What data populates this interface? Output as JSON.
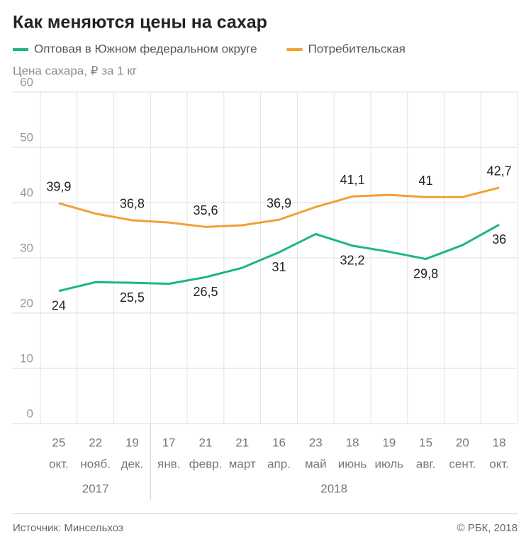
{
  "chart_data": {
    "type": "line",
    "title": "Как меняются цены на сахар",
    "subtitle": "Цена сахара, ₽ за 1 кг",
    "categories": [
      [
        "25",
        "окт."
      ],
      [
        "22",
        "нояб."
      ],
      [
        "19",
        "дек."
      ],
      [
        "17",
        "янв."
      ],
      [
        "21",
        "февр."
      ],
      [
        "21",
        "март"
      ],
      [
        "16",
        "апр."
      ],
      [
        "23",
        "май"
      ],
      [
        "18",
        "июнь"
      ],
      [
        "19",
        "июль"
      ],
      [
        "15",
        "авг."
      ],
      [
        "20",
        "сент."
      ],
      [
        "18",
        "окт."
      ]
    ],
    "years": [
      "2017",
      "2017",
      "2017",
      "2018",
      "2018",
      "2018",
      "2018",
      "2018",
      "2018",
      "2018",
      "2018",
      "2018",
      "2018"
    ],
    "series": [
      {
        "name": "Оптовая в Южном федеральном округе",
        "color": "#1db48a",
        "values": [
          24,
          25.6,
          25.5,
          25.3,
          26.5,
          28.2,
          31,
          34.3,
          32.2,
          31.1,
          29.8,
          32.3,
          36
        ],
        "value_labels": [
          "24",
          null,
          "25,5",
          null,
          "26,5",
          null,
          "31",
          null,
          "32,2",
          null,
          "29,8",
          null,
          "36"
        ]
      },
      {
        "name": "Потребительская",
        "color": "#f2a034",
        "values": [
          39.9,
          38,
          36.8,
          36.4,
          35.6,
          35.9,
          36.9,
          39.2,
          41.1,
          41.4,
          41,
          41,
          42.7
        ],
        "value_labels": [
          "39,9",
          null,
          "36,8",
          null,
          "35,6",
          null,
          "36,9",
          null,
          "41,1",
          null,
          "41",
          null,
          "42,7"
        ]
      }
    ],
    "ylim": [
      0,
      60
    ],
    "yticks": [
      0,
      10,
      20,
      30,
      40,
      50,
      60
    ],
    "grid": true,
    "source": "Источник: Минсельхоз",
    "copyright": "© РБК, 2018"
  }
}
